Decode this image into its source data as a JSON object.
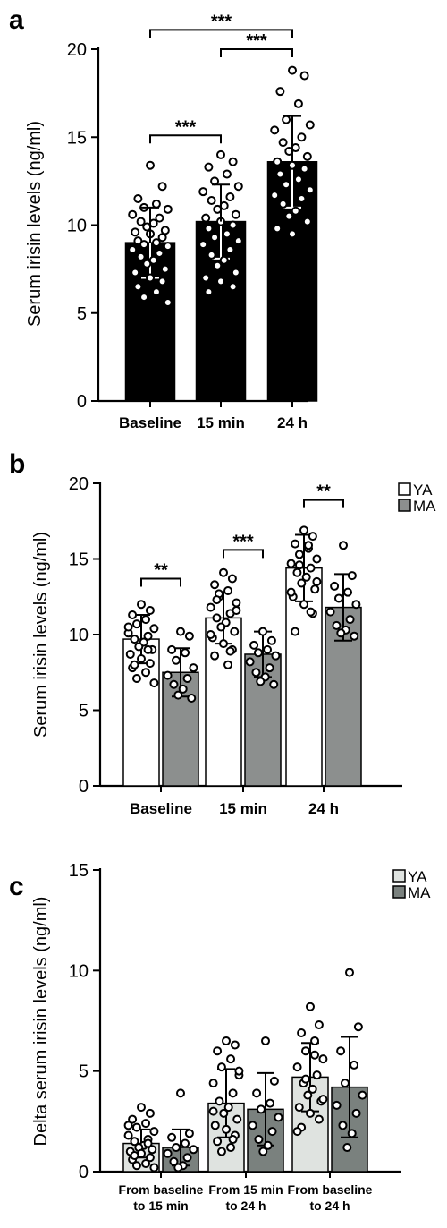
{
  "chart_data": [
    {
      "panel": "a",
      "type": "bar",
      "ylabel": "Serum irisin levels (ng/ml)",
      "ylim": [
        0,
        20
      ],
      "yticks": [
        0,
        5,
        10,
        15,
        20
      ],
      "categories": [
        "Baseline",
        "15 min",
        "24 h"
      ],
      "values": [
        9.0,
        10.2,
        13.6
      ],
      "errors": [
        2.0,
        2.1,
        2.6
      ],
      "bar_color": "#000000",
      "points": [
        [
          13.4,
          12.2,
          11.5,
          11.2,
          11.0,
          10.9,
          10.6,
          10.4,
          10.2,
          10.1,
          9.9,
          9.7,
          9.6,
          9.5,
          9.3,
          9.1,
          9.0,
          8.9,
          8.8,
          8.6,
          8.4,
          8.2,
          8.0,
          7.8,
          7.5,
          7.3,
          7.0,
          6.8,
          6.5,
          6.2,
          5.9,
          5.6
        ],
        [
          14.0,
          13.6,
          13.3,
          12.9,
          12.5,
          12.2,
          11.9,
          11.6,
          11.4,
          11.1,
          10.9,
          10.6,
          10.4,
          10.2,
          10.0,
          9.8,
          9.5,
          9.3,
          9.1,
          8.9,
          8.6,
          8.3,
          8.0,
          7.7,
          7.3,
          7.0,
          6.8,
          6.5,
          6.2
        ],
        [
          18.8,
          18.5,
          17.6,
          16.9,
          16.0,
          15.7,
          15.4,
          15.0,
          14.7,
          14.4,
          14.2,
          13.9,
          13.6,
          13.4,
          13.2,
          12.9,
          12.6,
          12.3,
          12.0,
          11.7,
          11.5,
          11.2,
          10.8,
          10.5,
          10.2,
          9.8,
          9.5
        ]
      ],
      "brackets": [
        {
          "from": 0,
          "to": 2,
          "label": "***",
          "y": 21.1
        },
        {
          "from": 1,
          "to": 2,
          "label": "***",
          "y": 20.0
        },
        {
          "from": 0,
          "to": 1,
          "label": "***",
          "y": 15.1
        }
      ]
    },
    {
      "panel": "b",
      "type": "bar",
      "ylabel": "Serum irisin levels (ng/ml)",
      "ylim": [
        0,
        20
      ],
      "yticks": [
        0,
        5,
        10,
        15,
        20
      ],
      "categories": [
        "Baseline",
        "15 min",
        "24 h"
      ],
      "series": [
        {
          "name": "YA",
          "color": "#ffffff",
          "values": [
            9.7,
            11.1,
            14.4
          ],
          "errors": [
            1.6,
            1.7,
            2.2
          ],
          "points": [
            [
              12.0,
              11.6,
              11.3,
              11.0,
              10.7,
              10.4,
              10.1,
              9.9,
              9.7,
              9.5,
              9.2,
              9.0,
              8.7,
              8.4,
              8.1,
              7.8,
              7.5,
              7.1,
              6.8,
              10.5,
              9.0,
              8.0
            ],
            [
              14.1,
              13.7,
              13.3,
              12.9,
              12.5,
              12.1,
              11.8,
              11.4,
              11.1,
              10.8,
              10.5,
              10.2,
              9.8,
              9.4,
              9.0,
              8.6,
              8.0,
              12.7,
              11.6,
              10.0,
              8.9,
              12.3
            ],
            [
              16.9,
              16.5,
              16.0,
              15.7,
              15.3,
              15.0,
              14.7,
              14.4,
              14.1,
              13.8,
              13.4,
              13.0,
              12.5,
              12.0,
              11.4,
              10.2,
              15.9,
              14.6,
              13.5,
              12.8,
              11.5
            ]
          ]
        },
        {
          "name": "MA",
          "color": "#8c8f8e",
          "values": [
            7.5,
            8.7,
            11.8
          ],
          "errors": [
            1.6,
            1.5,
            2.2
          ],
          "points": [
            [
              10.2,
              9.9,
              9.0,
              8.8,
              8.3,
              7.8,
              7.3,
              7.1,
              6.7,
              6.4,
              6.0,
              5.8
            ],
            [
              10.2,
              9.6,
              9.3,
              9.0,
              8.8,
              8.6,
              8.2,
              7.8,
              7.5,
              7.2,
              6.9,
              6.7
            ],
            [
              15.9,
              13.9,
              13.2,
              12.8,
              12.4,
              12.0,
              11.5,
              11.0,
              10.6,
              10.3,
              10.1,
              9.9
            ]
          ]
        }
      ],
      "brackets": [
        {
          "group": 0,
          "label": "**",
          "y": 13.7
        },
        {
          "group": 1,
          "label": "***",
          "y": 15.6
        },
        {
          "group": 2,
          "label": "**",
          "y": 18.9
        }
      ],
      "legend": "top-right"
    },
    {
      "panel": "c",
      "type": "bar",
      "ylabel": "Delta serum irisin levels (ng/ml)",
      "ylim": [
        0,
        15
      ],
      "yticks": [
        0,
        5,
        10,
        15
      ],
      "categories": [
        [
          "From baseline",
          "to 15 min"
        ],
        [
          "From 15 min",
          "to 24 h"
        ],
        [
          "From baseline",
          "to 24 h"
        ]
      ],
      "series": [
        {
          "name": "YA",
          "color": "#dfe3e0",
          "values": [
            1.4,
            3.4,
            4.7
          ],
          "errors": [
            0.7,
            1.7,
            1.7
          ],
          "points": [
            [
              3.2,
              2.9,
              2.6,
              2.4,
              2.2,
              2.0,
              1.8,
              1.6,
              1.5,
              1.3,
              1.2,
              1.1,
              1.0,
              0.9,
              0.7,
              0.6,
              0.4,
              0.3,
              0.2,
              2.3,
              1.4,
              0.8
            ],
            [
              6.5,
              6.3,
              6.0,
              5.6,
              5.2,
              4.8,
              4.4,
              3.9,
              3.5,
              3.2,
              2.9,
              2.6,
              2.3,
              2.1,
              1.8,
              1.5,
              1.2,
              1.0,
              5.0,
              3.0,
              1.6
            ],
            [
              8.2,
              7.3,
              6.9,
              6.5,
              6.0,
              5.6,
              5.2,
              4.8,
              4.4,
              4.1,
              3.8,
              3.5,
              3.2,
              2.9,
              2.6,
              2.2,
              5.8,
              4.6,
              3.6,
              2.0
            ]
          ]
        },
        {
          "name": "MA",
          "color": "#7a817e",
          "values": [
            1.2,
            3.1,
            4.2
          ],
          "errors": [
            0.9,
            1.8,
            2.5
          ],
          "points": [
            [
              3.9,
              1.9,
              1.7,
              1.4,
              1.2,
              1.1,
              0.9,
              0.7,
              0.5,
              0.3,
              0.2
            ],
            [
              6.5,
              4.5,
              3.9,
              3.4,
              3.1,
              2.7,
              2.3,
              2.0,
              1.6,
              1.3,
              1.0
            ],
            [
              9.9,
              7.2,
              6.0,
              5.3,
              4.4,
              3.8,
              3.3,
              2.9,
              2.3,
              1.9,
              1.2
            ]
          ]
        }
      ],
      "legend": "top-right"
    }
  ]
}
